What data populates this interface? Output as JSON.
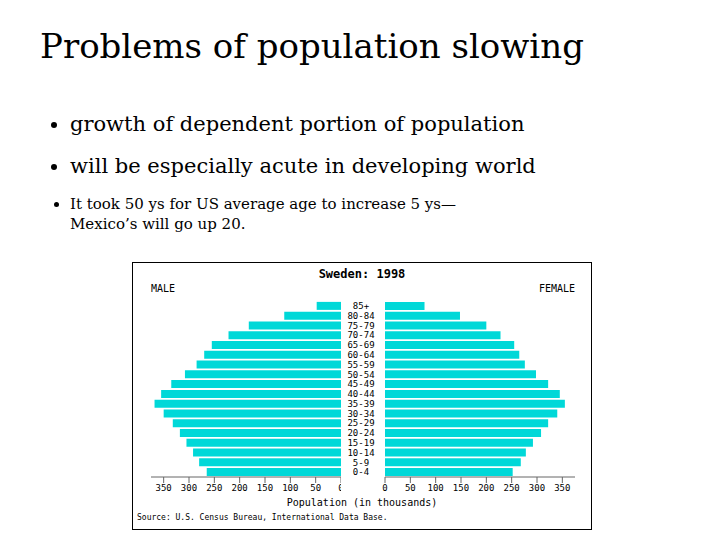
{
  "title": "Problems of population slowing",
  "bullets": [
    [
      "growth of dependent portion of population"
    ],
    [
      "will be especially acute in developing world"
    ],
    [
      "It took 50 ys for US average age to increase 5 ys—",
      "Mexico’s will go up 20."
    ]
  ],
  "chart_data": {
    "type": "bar",
    "orientation": "horizontal",
    "title": "Sweden: 1998",
    "xlabel": "Population (in thousands)",
    "categories": [
      "0-4",
      "5-9",
      "10-14",
      "15-19",
      "20-24",
      "25-29",
      "30-34",
      "35-39",
      "40-44",
      "45-49",
      "50-54",
      "55-59",
      "60-64",
      "65-69",
      "70-74",
      "75-79",
      "80-84",
      "85+"
    ],
    "series": [
      {
        "name": "MALE",
        "color": "#00d8d8",
        "values": [
          265,
          280,
          292,
          305,
          318,
          332,
          350,
          368,
          355,
          335,
          308,
          285,
          270,
          255,
          222,
          182,
          112,
          48
        ]
      },
      {
        "name": "FEMALE",
        "color": "#00d8d8",
        "values": [
          252,
          268,
          278,
          292,
          308,
          322,
          340,
          355,
          345,
          322,
          298,
          276,
          265,
          255,
          228,
          200,
          148,
          78
        ]
      }
    ],
    "xlim": [
      0,
      375
    ],
    "xticks": [
      0,
      50,
      100,
      150,
      200,
      250,
      300,
      350
    ],
    "grid": false,
    "annotations": [
      "Source: U.S. Census Bureau, International Data Base."
    ]
  }
}
